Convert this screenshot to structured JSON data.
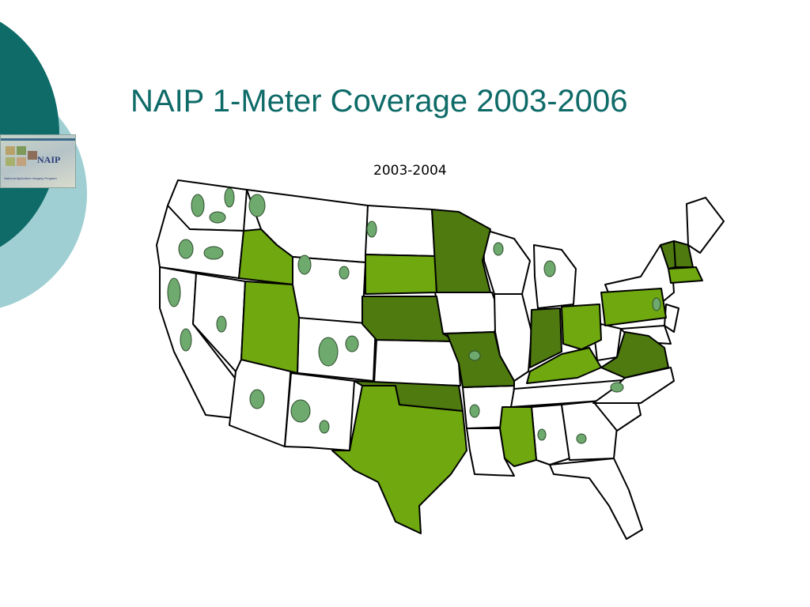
{
  "slide": {
    "title": "NAIP 1-Meter Coverage 2003-2006",
    "map_label": "2003-2004",
    "logo_text": "NAIP",
    "logo_caption": "National Agriculture Imagery Program"
  },
  "colors": {
    "theme_dark": "#0e6b68",
    "theme_light": "#9fcfd2",
    "statewide_dark": "#4e7a10",
    "statewide_light": "#6fa80f",
    "partial_patch": "#6ea96e",
    "no_coverage": "#ffffff"
  },
  "coverage": {
    "statewide_dark_states": [
      "Minnesota",
      "Nebraska",
      "Oklahoma",
      "Missouri",
      "Indiana",
      "Virginia",
      "Vermont",
      "New Hampshire"
    ],
    "statewide_light_states": [
      "Idaho",
      "Utah",
      "South Dakota",
      "Texas",
      "Mississippi",
      "Ohio",
      "Pennsylvania",
      "Kentucky",
      "Massachusetts"
    ]
  }
}
